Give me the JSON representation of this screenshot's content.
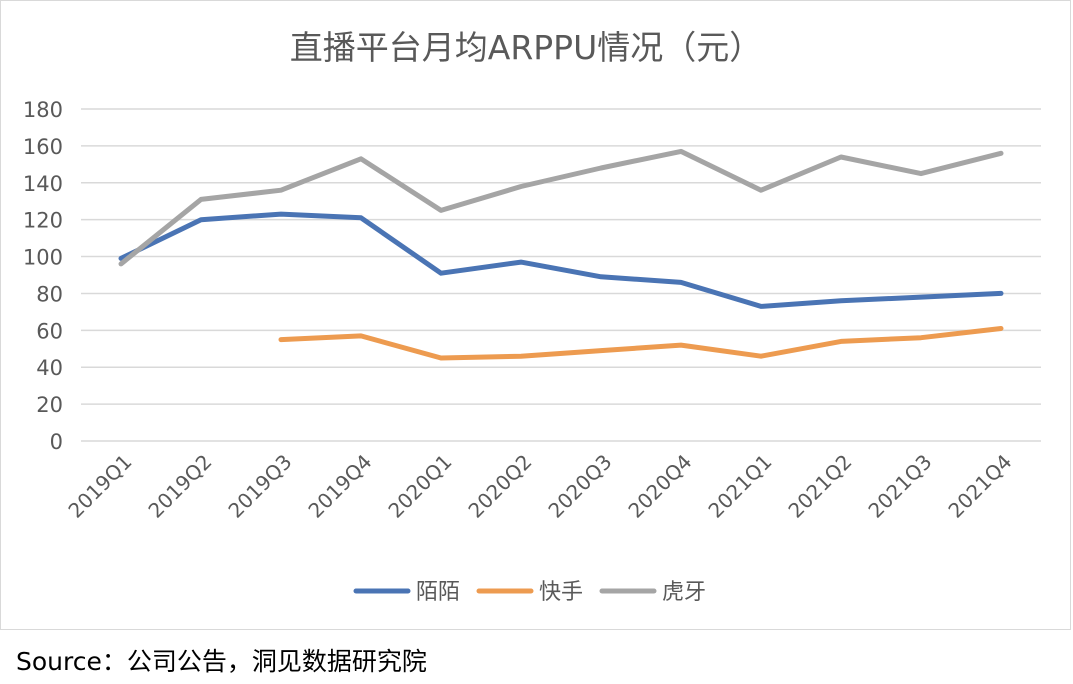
{
  "source_note": "Source：公司公告，洞见数据研究院",
  "chart_data": {
    "type": "line",
    "title": "直播平台月均ARPPU情况（元）",
    "xlabel": "",
    "ylabel": "",
    "categories": [
      "2019Q1",
      "2019Q2",
      "2019Q3",
      "2019Q4",
      "2020Q1",
      "2020Q2",
      "2020Q3",
      "2020Q4",
      "2021Q1",
      "2021Q2",
      "2021Q3",
      "2021Q4"
    ],
    "ylim": [
      0,
      180
    ],
    "yticks": [
      0,
      20,
      40,
      60,
      80,
      100,
      120,
      140,
      160,
      180
    ],
    "grid": true,
    "legend_position": "bottom",
    "series": [
      {
        "name": "陌陌",
        "color": "#4a74b4",
        "values": [
          99,
          120,
          123,
          121,
          91,
          97,
          89,
          86,
          73,
          76,
          78,
          80
        ]
      },
      {
        "name": "快手",
        "color": "#ed9b50",
        "values": [
          null,
          null,
          55,
          57,
          45,
          46,
          49,
          52,
          46,
          54,
          56,
          61
        ]
      },
      {
        "name": "虎牙",
        "color": "#a5a5a5",
        "values": [
          96,
          131,
          136,
          153,
          125,
          138,
          148,
          157,
          136,
          154,
          145,
          156
        ]
      }
    ]
  }
}
